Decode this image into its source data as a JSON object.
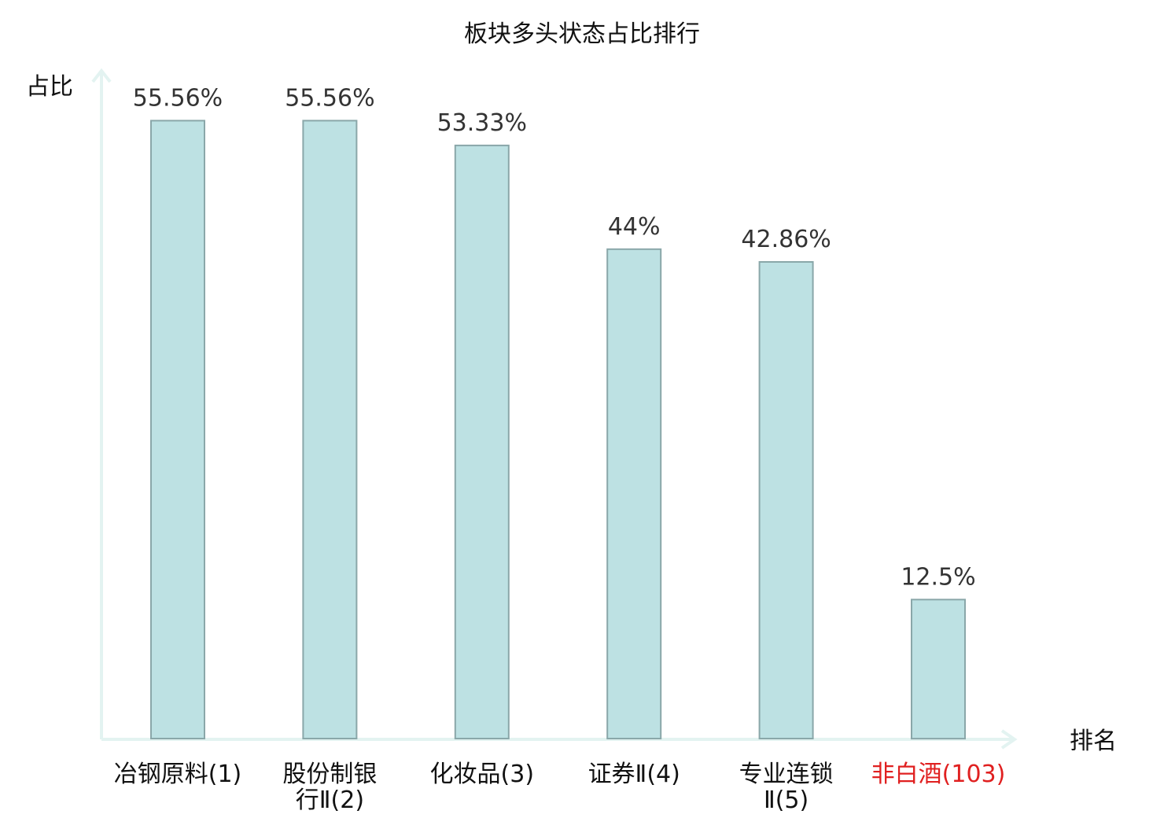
{
  "chart_data": {
    "type": "bar",
    "title": "板块多头状态占比排行",
    "ylabel": "占比",
    "xlabel": "排名",
    "categories": [
      [
        "冶钢原料(1)"
      ],
      [
        "股份制银",
        "行Ⅱ(2)"
      ],
      [
        "化妆品(3)"
      ],
      [
        "证券Ⅱ(4)"
      ],
      [
        "专业连锁",
        "Ⅱ(5)"
      ],
      [
        "非白酒(103)"
      ]
    ],
    "values": [
      55.56,
      55.56,
      53.33,
      44,
      42.86,
      12.5
    ],
    "value_labels": [
      "55.56%",
      "55.56%",
      "53.33%",
      "44%",
      "42.86%",
      "12.5%"
    ],
    "highlight_index": 5,
    "ylim": [
      0,
      60
    ],
    "grid": false,
    "colors": {
      "bar_fill": "#bde1e3",
      "bar_stroke": "#8aa7a9",
      "axis": "#e3f3f1",
      "highlight_text": "#e02020"
    }
  }
}
